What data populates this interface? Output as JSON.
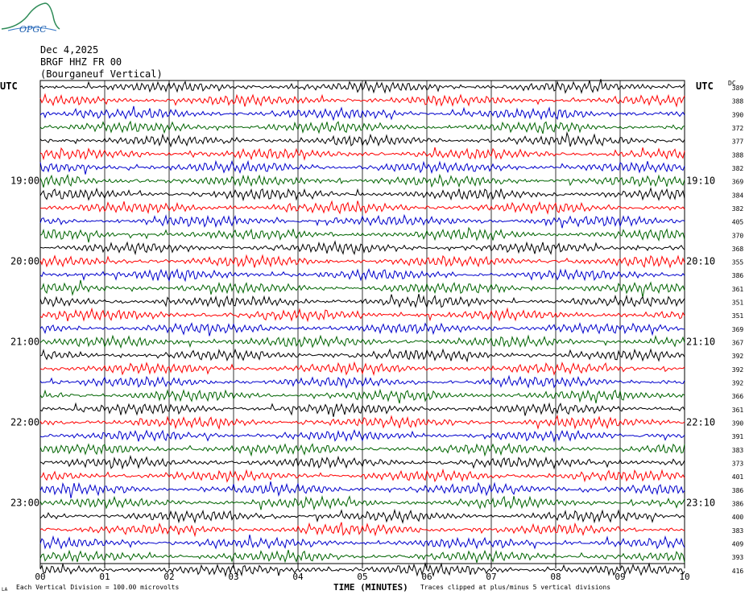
{
  "header": {
    "date": "Dec 4,2025",
    "station": "BRGF HHZ FR 00",
    "location": "(Bourganeuf Vertical)",
    "logo_text": "OPGC"
  },
  "chart_data": {
    "type": "line",
    "title": "",
    "xlabel": "TIME (MINUTES)",
    "ylabel": "",
    "x_ticks": [
      "00",
      "01",
      "02",
      "03",
      "04",
      "05",
      "06",
      "07",
      "08",
      "09",
      "10"
    ],
    "xlim": [
      0,
      10
    ],
    "left_axis_title": "UTC",
    "right_axis_title": "UTC",
    "dc_header": "DC",
    "left_hour_labels": [
      {
        "row": 7,
        "label": "19:00"
      },
      {
        "row": 13,
        "label": "20:00"
      },
      {
        "row": 19,
        "label": "21:00"
      },
      {
        "row": 25,
        "label": "22:00"
      },
      {
        "row": 31,
        "label": "23:00"
      }
    ],
    "right_hour_labels": [
      {
        "row": 7,
        "label": "19:10"
      },
      {
        "row": 13,
        "label": "20:10"
      },
      {
        "row": 19,
        "label": "21:10"
      },
      {
        "row": 25,
        "label": "22:10"
      },
      {
        "row": 31,
        "label": "23:10"
      }
    ],
    "trace_colors": [
      "#000000",
      "#ff0000",
      "#0000cc",
      "#006400"
    ],
    "dc_offsets": [
      389,
      388,
      390,
      372,
      377,
      388,
      382,
      369,
      384,
      382,
      405,
      370,
      368,
      355,
      386,
      361,
      351,
      351,
      369,
      367,
      392,
      392,
      392,
      366,
      361,
      390,
      391,
      383,
      373,
      401,
      386,
      386,
      400,
      383,
      409,
      393,
      416
    ],
    "footer_left": "Each Vertical Division =  100.00 microvolts",
    "footer_right": "Traces clipped at plus/minus 5 vertical divisions",
    "corner_mark": "LA",
    "grid": true
  }
}
